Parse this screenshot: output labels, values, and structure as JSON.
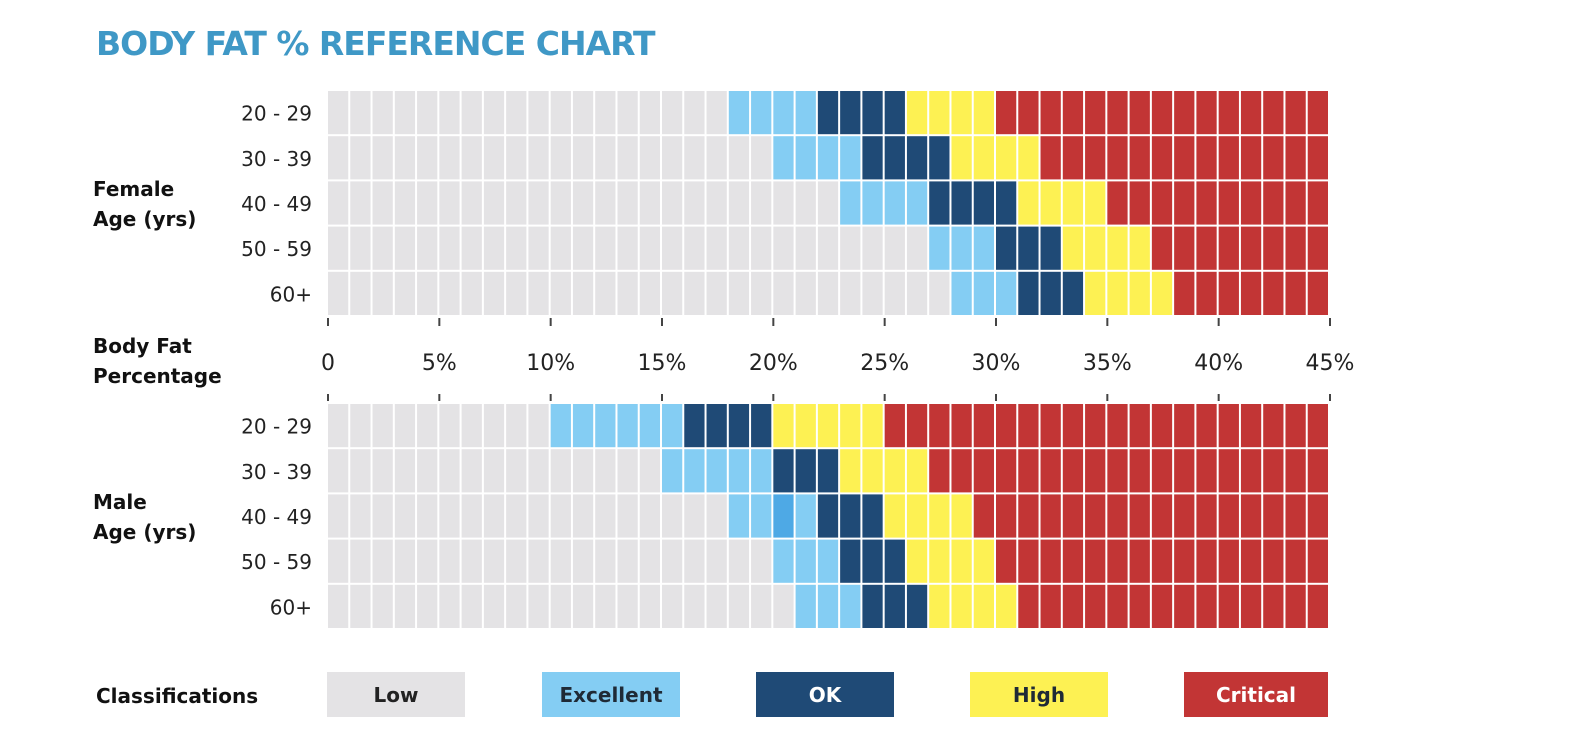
{
  "chart_data": {
    "type": "heatmap",
    "title": "BODY FAT % REFERENCE CHART",
    "x_axis_label": [
      "Body Fat",
      "Percentage"
    ],
    "x_range": [
      0,
      45
    ],
    "x_step": 1,
    "x_ticks": [
      0,
      5,
      10,
      15,
      20,
      25,
      30,
      35,
      40,
      45
    ],
    "x_tick_labels": [
      "0",
      "5%",
      "10%",
      "15%",
      "20%",
      "25%",
      "30%",
      "35%",
      "40%",
      "45%"
    ],
    "groups": [
      {
        "label": [
          "Female",
          "Age (yrs)"
        ],
        "rows": [
          {
            "age": "20 - 29",
            "excellent_from": 18,
            "ok_from": 22,
            "high_from": 26,
            "critical_from": 30
          },
          {
            "age": "30 - 39",
            "excellent_from": 20,
            "ok_from": 24,
            "high_from": 28,
            "critical_from": 32
          },
          {
            "age": "40 - 49",
            "excellent_from": 23,
            "ok_from": 27,
            "high_from": 31,
            "critical_from": 35
          },
          {
            "age": "50 - 59",
            "excellent_from": 27,
            "ok_from": 30,
            "high_from": 33,
            "critical_from": 37
          },
          {
            "age": "60+",
            "excellent_from": 28,
            "ok_from": 31,
            "high_from": 34,
            "critical_from": 38
          }
        ]
      },
      {
        "label": [
          "Male",
          "Age (yrs)"
        ],
        "rows": [
          {
            "age": "20 - 29",
            "excellent_from": 10,
            "ok_from": 16,
            "high_from": 20,
            "critical_from": 25
          },
          {
            "age": "30 - 39",
            "excellent_from": 15,
            "ok_from": 20,
            "high_from": 23,
            "critical_from": 27
          },
          {
            "age": "40 - 49",
            "excellent_from": 18,
            "ok_from": 22,
            "high_from": 25,
            "critical_from": 29
          },
          {
            "age": "50 - 59",
            "excellent_from": 20,
            "ok_from": 23,
            "high_from": 26,
            "critical_from": 30
          },
          {
            "age": "60+",
            "excellent_from": 21,
            "ok_from": 24,
            "high_from": 27,
            "critical_from": 31
          }
        ]
      }
    ],
    "legend": {
      "title": "Classifications",
      "placement": "bottom",
      "items": [
        {
          "key": "low",
          "label": "Low",
          "color": "#e4e3e5",
          "text_color": "#222222"
        },
        {
          "key": "excellent",
          "label": "Excellent",
          "color": "#84cdf3",
          "text_color": "#1f2a36"
        },
        {
          "key": "ok",
          "label": "OK",
          "color": "#1f4a76",
          "text_color": "#ffffff"
        },
        {
          "key": "high",
          "label": "High",
          "color": "#fdf153",
          "text_color": "#1f2a36"
        },
        {
          "key": "critical",
          "label": "Critical",
          "color": "#c23535",
          "text_color": "#ffffff"
        }
      ]
    },
    "highlight_cell": {
      "group": 1,
      "row": 2,
      "x": 20,
      "color": "#4ea9e5"
    },
    "title_color": "#3f98c6"
  }
}
